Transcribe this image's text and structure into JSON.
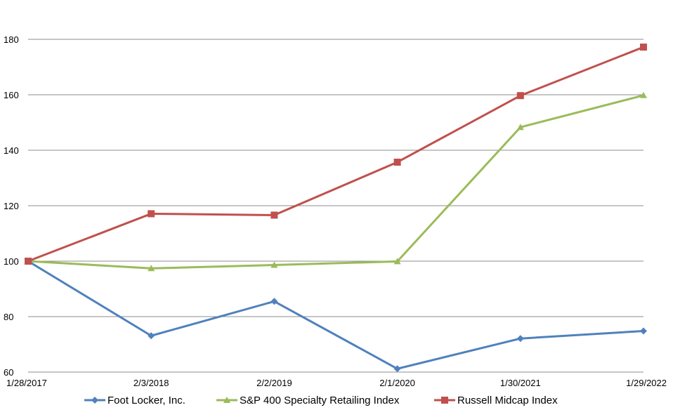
{
  "chart_data": {
    "type": "line",
    "title": "",
    "xlabel": "",
    "ylabel": "",
    "categories": [
      "1/28/2017",
      "2/3/2018",
      "2/2/2019",
      "2/1/2020",
      "1/30/2021",
      "1/29/2022"
    ],
    "ylim": [
      60,
      180
    ],
    "yticks": [
      60,
      80,
      100,
      120,
      140,
      160,
      180
    ],
    "grid": true,
    "legend_position": "bottom",
    "series": [
      {
        "name": "Foot Locker, Inc.",
        "color": "#4F81BD",
        "marker": "diamond",
        "values": [
          100,
          73.1,
          85.5,
          61.2,
          72.1,
          74.8
        ]
      },
      {
        "name": "S&P 400 Specialty Retailing Index",
        "color": "#9BBB59",
        "marker": "triangle",
        "values": [
          100,
          97.4,
          98.6,
          99.9,
          148.3,
          159.8
        ]
      },
      {
        "name": "Russell Midcap Index",
        "color": "#C0504D",
        "marker": "square",
        "values": [
          100,
          117.1,
          116.6,
          135.7,
          159.7,
          177.2
        ]
      }
    ]
  }
}
